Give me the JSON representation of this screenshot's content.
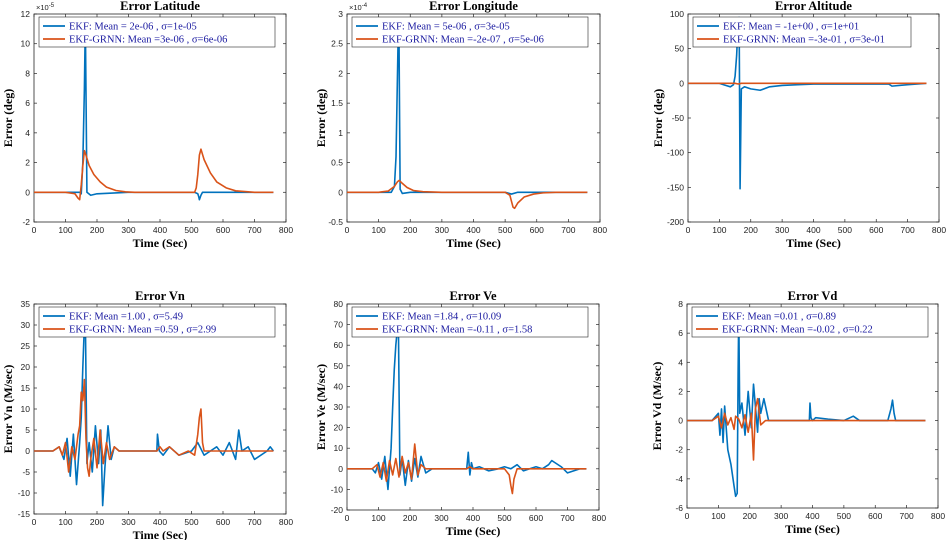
{
  "chart_data": [
    {
      "type": "line",
      "title": "Error Latitude",
      "xlabel": "Time (Sec)",
      "ylabel": "Error (deg)",
      "exponent_label": "10",
      "exponent_power": "-5",
      "xlim": [
        0,
        800
      ],
      "ylim": [
        -2,
        12
      ],
      "xticks": [
        0,
        100,
        200,
        300,
        400,
        500,
        600,
        700,
        800
      ],
      "yticks": [
        -2,
        0,
        2,
        4,
        6,
        8,
        10,
        12
      ],
      "legend_position": "top-left",
      "series": [
        {
          "name": "EKF: Mean = 2e-06 , σ=1e-05",
          "color": "#0072BD",
          "x": [
            0,
            100,
            130,
            145,
            150,
            155,
            160,
            163,
            168,
            180,
            200,
            300,
            500,
            510,
            520,
            523,
            525,
            530,
            535,
            600,
            760
          ],
          "y": [
            0,
            0,
            0,
            0,
            -0.1,
            2,
            7,
            11.5,
            0,
            -0.2,
            -0.1,
            0,
            0,
            0,
            -0.1,
            -0.3,
            -0.5,
            -0.2,
            0,
            0,
            0
          ]
        },
        {
          "name": "EKF-GRNN: Mean =3e-06 , σ=6e-06",
          "color": "#D95319",
          "x": [
            0,
            100,
            130,
            140,
            145,
            150,
            155,
            160,
            165,
            175,
            190,
            210,
            230,
            260,
            290,
            320,
            400,
            500,
            510,
            515,
            520,
            525,
            530,
            540,
            560,
            580,
            610,
            640,
            700,
            760
          ],
          "y": [
            0,
            0,
            -0.1,
            -0.4,
            -0.5,
            0.5,
            1.8,
            2.8,
            2.5,
            1.8,
            1.2,
            0.7,
            0.35,
            0.12,
            0.03,
            0,
            0,
            0,
            0,
            0.3,
            1.2,
            2.5,
            2.9,
            2.2,
            1.3,
            0.7,
            0.3,
            0.1,
            0,
            0
          ]
        }
      ]
    },
    {
      "type": "line",
      "title": "Error Longitude",
      "xlabel": "Time (Sec)",
      "ylabel": "Error (deg)",
      "exponent_label": "10",
      "exponent_power": "-4",
      "xlim": [
        0,
        800
      ],
      "ylim": [
        -0.5,
        3
      ],
      "xticks": [
        0,
        100,
        200,
        300,
        400,
        500,
        600,
        700,
        800
      ],
      "yticks": [
        -0.5,
        0,
        0.5,
        1,
        1.5,
        2,
        2.5,
        3
      ],
      "legend_position": "top-left",
      "series": [
        {
          "name": "EKF: Mean = 5e-06 , σ=3e-05",
          "color": "#0072BD",
          "x": [
            0,
            100,
            140,
            150,
            155,
            158,
            161,
            164,
            168,
            175,
            200,
            300,
            500,
            520,
            540,
            600,
            760
          ],
          "y": [
            0,
            0,
            0,
            0.1,
            0.6,
            1.5,
            2.4,
            2.9,
            0.05,
            -0.02,
            0,
            0,
            0,
            -0.03,
            0,
            0,
            0
          ]
        },
        {
          "name": "EKF-GRNN: Mean =-2e-07 , σ=5e-06",
          "color": "#D95319",
          "x": [
            0,
            100,
            130,
            150,
            160,
            165,
            175,
            190,
            210,
            240,
            300,
            500,
            515,
            520,
            525,
            530,
            540,
            560,
            590,
            620,
            660,
            760
          ],
          "y": [
            0,
            0,
            0.02,
            0.1,
            0.18,
            0.2,
            0.15,
            0.08,
            0.03,
            0.01,
            0,
            0,
            -0.05,
            -0.15,
            -0.25,
            -0.27,
            -0.18,
            -0.08,
            -0.03,
            -0.01,
            0,
            0
          ]
        }
      ]
    },
    {
      "type": "line",
      "title": "Error Altitude",
      "xlabel": "Time (Sec)",
      "ylabel": "Error (deg)",
      "xlim": [
        0,
        800
      ],
      "ylim": [
        -200,
        100
      ],
      "xticks": [
        0,
        100,
        200,
        300,
        400,
        500,
        600,
        700,
        800
      ],
      "yticks": [
        -200,
        -150,
        -100,
        -50,
        0,
        50,
        100
      ],
      "legend_position": "top-left",
      "series": [
        {
          "name": "EKF: Mean = -1e+00 , σ=1e+01",
          "color": "#0072BD",
          "x": [
            0,
            100,
            120,
            135,
            145,
            150,
            155,
            160,
            163,
            166,
            170,
            180,
            200,
            230,
            260,
            300,
            350,
            400,
            500,
            600,
            640,
            650,
            700,
            760
          ],
          "y": [
            0,
            0,
            -3,
            -5,
            -2,
            10,
            40,
            90,
            95,
            -152,
            -8,
            -5,
            -8,
            -10,
            -5,
            -3,
            -2,
            -1,
            -1,
            -1,
            -1,
            -4,
            -2,
            0
          ]
        },
        {
          "name": "EKF-GRNN: Mean =-3e-01 , σ=3e-01",
          "color": "#D95319",
          "x": [
            0,
            100,
            150,
            160,
            170,
            200,
            300,
            400,
            500,
            600,
            700,
            760
          ],
          "y": [
            0,
            0,
            0,
            -1,
            0,
            0,
            0,
            0,
            0,
            0,
            0,
            0
          ]
        }
      ]
    },
    {
      "type": "line",
      "title": "Error Vn",
      "xlabel": "Time (Sec)",
      "ylabel": "Error Vn (M/sec)",
      "xlim": [
        0,
        800
      ],
      "ylim": [
        -15,
        35
      ],
      "xticks": [
        0,
        100,
        200,
        300,
        400,
        500,
        600,
        700,
        800
      ],
      "yticks": [
        -15,
        -10,
        -5,
        0,
        5,
        10,
        15,
        20,
        25,
        30,
        35
      ],
      "legend_position": "top-left",
      "series": [
        {
          "name": "EKF: Mean =1.00 , σ=5.49",
          "color": "#0072BD",
          "x": [
            0,
            60,
            80,
            95,
            105,
            115,
            125,
            135,
            145,
            150,
            155,
            160,
            163,
            168,
            175,
            185,
            195,
            205,
            212,
            218,
            225,
            235,
            245,
            255,
            270,
            300,
            390,
            392,
            398,
            410,
            430,
            460,
            500,
            520,
            540,
            560,
            580,
            600,
            620,
            640,
            650,
            660,
            680,
            700,
            740,
            750,
            760
          ],
          "y": [
            0,
            0,
            1,
            -2,
            3,
            -6,
            4,
            -8,
            2,
            8,
            20,
            30,
            32,
            -3,
            2,
            -5,
            6,
            -3,
            5,
            -13,
            -4,
            6,
            -2,
            1,
            0,
            0,
            0,
            4,
            0,
            -1,
            1,
            -1,
            0,
            2,
            -1,
            0,
            1,
            -1,
            2,
            -2,
            5,
            0,
            1,
            -2,
            0,
            1,
            0
          ]
        },
        {
          "name": "EKF-GRNN: Mean =0.59 , σ=2.99",
          "color": "#D95319",
          "x": [
            0,
            60,
            80,
            90,
            100,
            110,
            120,
            130,
            140,
            145,
            150,
            155,
            160,
            165,
            170,
            175,
            180,
            190,
            200,
            210,
            220,
            230,
            240,
            255,
            270,
            300,
            390,
            400,
            410,
            430,
            460,
            490,
            510,
            520,
            525,
            530,
            535,
            540,
            560,
            600,
            640,
            680,
            720,
            760
          ],
          "y": [
            0,
            0,
            1,
            -1,
            2,
            -5,
            1,
            -2,
            4,
            6,
            14,
            12,
            17,
            3,
            -4,
            -6,
            -2,
            3,
            -4,
            5,
            -3,
            2,
            -2,
            1,
            0,
            0,
            0,
            1,
            0,
            1,
            -1,
            0,
            -1,
            4,
            8,
            10,
            2,
            0,
            0,
            0,
            0,
            0,
            0,
            0
          ]
        }
      ]
    },
    {
      "type": "line",
      "title": "Error Ve",
      "xlabel": "Time (Sec)",
      "ylabel": "Error Ve (M/sec)",
      "xlim": [
        0,
        800
      ],
      "ylim": [
        -20,
        80
      ],
      "xticks": [
        0,
        100,
        200,
        300,
        400,
        500,
        600,
        700,
        800
      ],
      "yticks": [
        -20,
        -10,
        0,
        10,
        20,
        30,
        40,
        50,
        60,
        70,
        80
      ],
      "legend_position": "top-left",
      "series": [
        {
          "name": "EKF: Mean =1.84 , σ=10.09",
          "color": "#0072BD",
          "x": [
            0,
            80,
            90,
            100,
            110,
            120,
            130,
            140,
            145,
            150,
            155,
            160,
            163,
            168,
            175,
            185,
            195,
            205,
            215,
            225,
            235,
            250,
            270,
            300,
            380,
            385,
            390,
            395,
            400,
            420,
            450,
            480,
            500,
            520,
            540,
            560,
            580,
            600,
            620,
            640,
            650,
            660,
            680,
            700,
            740,
            760
          ],
          "y": [
            0,
            0,
            -2,
            3,
            -5,
            6,
            -10,
            10,
            30,
            48,
            60,
            68,
            72,
            -3,
            5,
            -8,
            4,
            -6,
            5,
            -4,
            6,
            -2,
            0,
            0,
            0,
            8,
            -3,
            3,
            0,
            1,
            -1,
            0,
            1,
            0,
            2,
            -1,
            0,
            1,
            0,
            2,
            4,
            3,
            1,
            -2,
            0,
            0
          ]
        },
        {
          "name": "EKF-GRNN: Mean =-0.11 , σ=1.58",
          "color": "#D95319",
          "x": [
            0,
            80,
            95,
            105,
            115,
            125,
            135,
            145,
            155,
            165,
            175,
            185,
            195,
            205,
            215,
            225,
            235,
            250,
            300,
            380,
            390,
            400,
            420,
            500,
            515,
            520,
            525,
            530,
            540,
            600,
            700,
            760
          ],
          "y": [
            0,
            0,
            2,
            -4,
            3,
            -6,
            4,
            -3,
            5,
            -4,
            6,
            -2,
            3,
            -5,
            12,
            -3,
            2,
            0,
            0,
            0,
            1,
            0,
            0,
            0,
            -3,
            -8,
            -12,
            -5,
            0,
            0,
            0,
            0
          ]
        }
      ]
    },
    {
      "type": "line",
      "title": "Error Vd",
      "xlabel": "Time (Sec)",
      "ylabel": "Error Vd (M/sec)",
      "xlim": [
        0,
        800
      ],
      "ylim": [
        -6,
        8
      ],
      "xticks": [
        0,
        100,
        200,
        300,
        400,
        500,
        600,
        700,
        800
      ],
      "yticks": [
        -6,
        -4,
        -2,
        0,
        2,
        4,
        6,
        8
      ],
      "legend_position": "top-left",
      "series": [
        {
          "name": "EKF: Mean =0.01 , σ=0.89",
          "color": "#0072BD",
          "x": [
            0,
            80,
            100,
            105,
            110,
            115,
            120,
            130,
            140,
            150,
            155,
            160,
            163,
            165,
            168,
            175,
            185,
            195,
            205,
            212,
            218,
            225,
            230,
            235,
            245,
            260,
            300,
            390,
            392,
            395,
            400,
            410,
            450,
            500,
            530,
            550,
            600,
            640,
            650,
            655,
            660,
            665,
            700,
            760
          ],
          "y": [
            0,
            0,
            0.5,
            -1,
            0.8,
            -1.5,
            1,
            -2,
            -3,
            -4.5,
            -5.2,
            -5,
            3.5,
            7.5,
            0.5,
            1.2,
            -1,
            2,
            -0.5,
            2.5,
            1,
            -0.8,
            1.5,
            0.5,
            1.5,
            0,
            0,
            0,
            1.2,
            0.2,
            0,
            0.2,
            0.1,
            0,
            0.3,
            0,
            0,
            0,
            0.8,
            1.4,
            0.5,
            0,
            0,
            0
          ]
        },
        {
          "name": "EKF-GRNN: Mean =-0.02 , σ=0.22",
          "color": "#D95319",
          "x": [
            0,
            80,
            100,
            110,
            120,
            130,
            140,
            150,
            155,
            165,
            175,
            185,
            195,
            205,
            212,
            218,
            225,
            235,
            250,
            300,
            400,
            500,
            600,
            700,
            760
          ],
          "y": [
            0,
            0,
            0.3,
            -0.5,
            0.5,
            -0.3,
            0.2,
            -0.6,
            0.3,
            0.1,
            -0.5,
            0.4,
            -0.8,
            0.5,
            -2.7,
            0.8,
            1.5,
            -0.3,
            0,
            0,
            0,
            0,
            0,
            0,
            0
          ]
        }
      ]
    }
  ]
}
